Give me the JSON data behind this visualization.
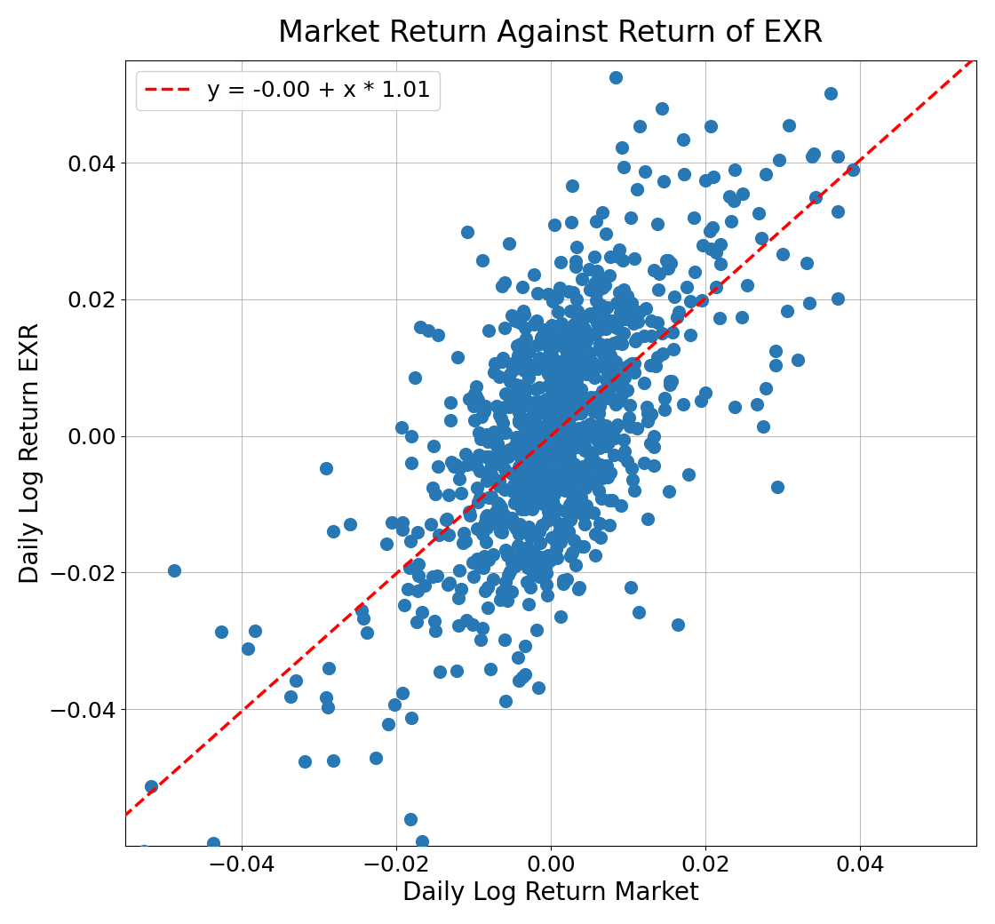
{
  "title": "Market Return Against Return of EXR",
  "xlabel": "Daily Log Return Market",
  "ylabel": "Daily Log Return EXR",
  "legend_label": "y = -0.00 + x * 1.01",
  "intercept": -0.0,
  "slope": 1.01,
  "dot_color": "#2878b5",
  "line_color": "#ff0000",
  "dot_size": 120,
  "dot_alpha": 1.0,
  "xlim": [
    -0.055,
    0.055
  ],
  "ylim": [
    -0.06,
    0.055
  ],
  "xticks": [
    -0.04,
    -0.02,
    0.0,
    0.02,
    0.04
  ],
  "yticks": [
    -0.04,
    -0.02,
    0.0,
    0.02,
    0.04
  ],
  "n_points": 1000,
  "random_seed": 42,
  "market_std": 0.01,
  "noise_std": 0.012,
  "title_fontsize": 24,
  "label_fontsize": 20,
  "tick_fontsize": 18,
  "legend_fontsize": 18
}
